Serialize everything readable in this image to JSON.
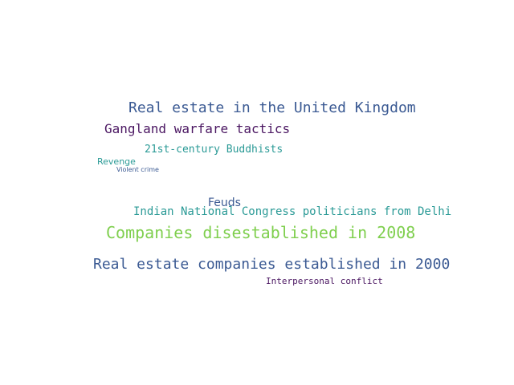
{
  "words": [
    {
      "text": "Real estate in the United Kingdom",
      "color": "#3b5a93"
    },
    {
      "text": "Gangland warfare tactics",
      "color": "#4b1762"
    },
    {
      "text": "21st-century Buddhists",
      "color": "#2a9a96"
    },
    {
      "text": "Revenge",
      "color": "#2a9a96"
    },
    {
      "text": "Violent crime",
      "color": "#3b5a93"
    },
    {
      "text": "Feuds",
      "color": "#3b5a93"
    },
    {
      "text": "Indian National Congress politicians from Delhi",
      "color": "#2a9a96"
    },
    {
      "text": "Companies disestablished in 2008",
      "color": "#7fcf4e"
    },
    {
      "text": "Real estate companies established in 2000",
      "color": "#3b5a93"
    },
    {
      "text": "Interpersonal conflict",
      "color": "#4b1762"
    }
  ]
}
